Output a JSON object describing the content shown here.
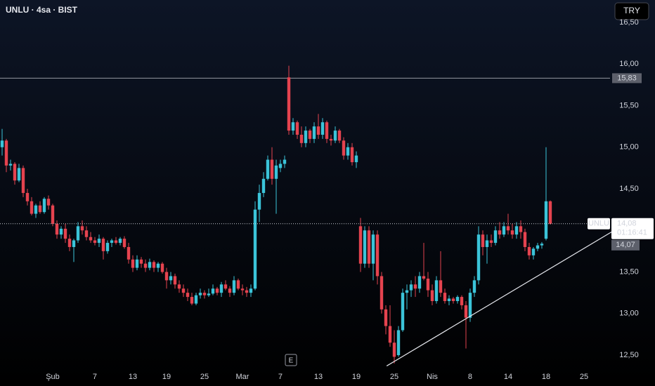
{
  "chart_data": {
    "type": "candlestick",
    "title": "UNLU · 4sa · BIST",
    "currency": "TRY",
    "event_marker": "E",
    "up_color": "#3bc4d9",
    "down_color": "#e5434f",
    "ylim": [
      12.34,
      16.77
    ],
    "yticks": [
      {
        "value": 12.5,
        "label": "12,50"
      },
      {
        "value": 13,
        "label": "13,00"
      },
      {
        "value": 13.5,
        "label": "13,50"
      },
      {
        "value": 14,
        "label": "14,00"
      },
      {
        "value": 14.5,
        "label": "14,50"
      },
      {
        "value": 15,
        "label": "15,00"
      },
      {
        "value": 15.5,
        "label": "15,50"
      },
      {
        "value": 16,
        "label": "16,00"
      },
      {
        "value": 16.5,
        "label": "16,50"
      }
    ],
    "xlim": [
      -0.5,
      144.17
    ],
    "xticks": [
      {
        "value": 12,
        "label": "Şub"
      },
      {
        "value": 22,
        "label": "7"
      },
      {
        "value": 31,
        "label": "13"
      },
      {
        "value": 39,
        "label": "19"
      },
      {
        "value": 48,
        "label": "25"
      },
      {
        "value": 57,
        "label": "Mar"
      },
      {
        "value": 66,
        "label": "7"
      },
      {
        "value": 75,
        "label": "13"
      },
      {
        "value": 84,
        "label": "19"
      },
      {
        "value": 93,
        "label": "25"
      },
      {
        "value": 102,
        "label": "Nis"
      },
      {
        "value": 111,
        "label": "8"
      },
      {
        "value": 120,
        "label": "14"
      },
      {
        "value": 129,
        "label": "18"
      },
      {
        "value": 138,
        "label": "25"
      }
    ],
    "hline": {
      "value": 15.83,
      "label": "15,83"
    },
    "last_price": {
      "value": 14.08,
      "label": "14,08",
      "countdown": "01:16:41",
      "symbol": "UNLU"
    },
    "bid": {
      "value": 14.07,
      "label": "14,07"
    },
    "trendline": {
      "x": [
        91.2,
        144.5
      ],
      "y": [
        12.37,
        13.98
      ]
    },
    "candles": [
      [
        15.0,
        15.22,
        14.9,
        15.08
      ],
      [
        15.08,
        15.1,
        14.7,
        14.78
      ],
      [
        14.78,
        14.85,
        14.72,
        14.8
      ],
      [
        14.8,
        14.82,
        14.55,
        14.6
      ],
      [
        14.6,
        14.8,
        14.58,
        14.75
      ],
      [
        14.75,
        14.78,
        14.4,
        14.45
      ],
      [
        14.45,
        14.5,
        14.3,
        14.35
      ],
      [
        14.35,
        14.4,
        14.18,
        14.2
      ],
      [
        14.2,
        14.32,
        14.15,
        14.3
      ],
      [
        14.3,
        14.35,
        14.2,
        14.22
      ],
      [
        14.22,
        14.4,
        14.2,
        14.38
      ],
      [
        14.38,
        14.42,
        14.25,
        14.3
      ],
      [
        14.3,
        14.32,
        14.05,
        14.08
      ],
      [
        14.08,
        14.12,
        13.9,
        13.95
      ],
      [
        13.95,
        14.05,
        13.9,
        14.02
      ],
      [
        14.02,
        14.08,
        13.85,
        13.9
      ],
      [
        13.9,
        13.95,
        13.75,
        13.8
      ],
      [
        13.8,
        13.9,
        13.62,
        13.88
      ],
      [
        13.88,
        14.1,
        13.85,
        14.05
      ],
      [
        14.05,
        14.12,
        13.95,
        14.0
      ],
      [
        14.0,
        14.05,
        13.88,
        13.92
      ],
      [
        13.92,
        13.98,
        13.85,
        13.88
      ],
      [
        13.88,
        13.92,
        13.82,
        13.85
      ],
      [
        13.85,
        13.95,
        13.8,
        13.9
      ],
      [
        13.9,
        13.92,
        13.65,
        13.75
      ],
      [
        13.75,
        13.88,
        13.72,
        13.85
      ],
      [
        13.85,
        13.9,
        13.8,
        13.88
      ],
      [
        13.88,
        13.92,
        13.83,
        13.85
      ],
      [
        13.85,
        13.92,
        13.82,
        13.9
      ],
      [
        13.9,
        13.93,
        13.78,
        13.8
      ],
      [
        13.8,
        13.85,
        13.6,
        13.65
      ],
      [
        13.65,
        13.7,
        13.5,
        13.55
      ],
      [
        13.55,
        13.7,
        13.52,
        13.65
      ],
      [
        13.65,
        13.68,
        13.55,
        13.6
      ],
      [
        13.6,
        13.65,
        13.5,
        13.55
      ],
      [
        13.55,
        13.66,
        13.52,
        13.62
      ],
      [
        13.62,
        13.64,
        13.5,
        13.55
      ],
      [
        13.55,
        13.62,
        13.5,
        13.6
      ],
      [
        13.6,
        13.62,
        13.48,
        13.5
      ],
      [
        13.5,
        13.55,
        13.3,
        13.4
      ],
      [
        13.4,
        13.5,
        13.35,
        13.45
      ],
      [
        13.45,
        13.48,
        13.3,
        13.35
      ],
      [
        13.35,
        13.4,
        13.25,
        13.3
      ],
      [
        13.3,
        13.35,
        13.2,
        13.25
      ],
      [
        13.25,
        13.3,
        13.15,
        13.2
      ],
      [
        13.2,
        13.25,
        13.1,
        13.12
      ],
      [
        13.12,
        13.25,
        13.1,
        13.22
      ],
      [
        13.22,
        13.3,
        13.18,
        13.25
      ],
      [
        13.25,
        13.28,
        13.18,
        13.22
      ],
      [
        13.22,
        13.3,
        13.2,
        13.24
      ],
      [
        13.24,
        13.35,
        13.22,
        13.3
      ],
      [
        13.3,
        13.32,
        13.22,
        13.25
      ],
      [
        13.25,
        13.38,
        13.2,
        13.35
      ],
      [
        13.35,
        13.4,
        13.28,
        13.3
      ],
      [
        13.3,
        13.33,
        13.2,
        13.25
      ],
      [
        13.25,
        13.45,
        13.22,
        13.4
      ],
      [
        13.4,
        13.42,
        13.28,
        13.3
      ],
      [
        13.3,
        13.35,
        13.22,
        13.28
      ],
      [
        13.28,
        13.32,
        13.2,
        13.25
      ],
      [
        13.25,
        13.35,
        13.2,
        13.3
      ],
      [
        13.3,
        14.35,
        13.28,
        14.25
      ],
      [
        14.25,
        14.55,
        14.1,
        14.45
      ],
      [
        14.45,
        14.7,
        14.4,
        14.62
      ],
      [
        14.62,
        14.9,
        14.6,
        14.85
      ],
      [
        14.85,
        15.0,
        14.55,
        14.62
      ],
      [
        14.62,
        14.85,
        14.2,
        14.78
      ],
      [
        14.75,
        14.85,
        14.7,
        14.8
      ],
      [
        14.8,
        14.9,
        14.75,
        14.85
      ],
      [
        15.84,
        15.98,
        15.15,
        15.2
      ],
      [
        15.2,
        15.35,
        15.15,
        15.3
      ],
      [
        15.3,
        15.32,
        15.1,
        15.15
      ],
      [
        15.15,
        15.25,
        15.0,
        15.05
      ],
      [
        15.05,
        15.25,
        15.0,
        15.2
      ],
      [
        15.2,
        15.22,
        15.05,
        15.1
      ],
      [
        15.1,
        15.3,
        15.05,
        15.25
      ],
      [
        15.25,
        15.4,
        15.1,
        15.15
      ],
      [
        15.15,
        15.35,
        15.1,
        15.3
      ],
      [
        15.3,
        15.32,
        15.05,
        15.1
      ],
      [
        15.1,
        15.15,
        15.02,
        15.08
      ],
      [
        15.08,
        15.25,
        15.05,
        15.2
      ],
      [
        15.2,
        15.22,
        15.05,
        15.08
      ],
      [
        15.08,
        15.12,
        14.85,
        14.9
      ],
      [
        14.9,
        15.05,
        14.85,
        15.0
      ],
      [
        15.0,
        15.05,
        14.78,
        14.82
      ],
      [
        14.82,
        14.95,
        14.75,
        14.9
      ],
      [
        14.05,
        14.15,
        13.5,
        13.6
      ],
      [
        13.6,
        14.05,
        13.55,
        14.0
      ],
      [
        14.0,
        14.05,
        13.55,
        13.6
      ],
      [
        13.6,
        14.0,
        13.4,
        13.95
      ],
      [
        13.95,
        14.0,
        13.35,
        13.45
      ],
      [
        13.45,
        13.5,
        13.0,
        13.05
      ],
      [
        13.05,
        13.1,
        12.75,
        12.85
      ],
      [
        12.85,
        13.1,
        12.6,
        12.65
      ],
      [
        12.65,
        12.8,
        12.4,
        12.48
      ],
      [
        12.5,
        12.85,
        12.48,
        12.8
      ],
      [
        12.8,
        13.3,
        12.78,
        13.25
      ],
      [
        13.25,
        13.35,
        13.05,
        13.28
      ],
      [
        13.28,
        13.4,
        13.2,
        13.35
      ],
      [
        13.35,
        13.45,
        13.2,
        13.3
      ],
      [
        13.3,
        13.5,
        13.25,
        13.45
      ],
      [
        13.45,
        13.85,
        13.4,
        13.42
      ],
      [
        13.42,
        13.5,
        13.2,
        13.28
      ],
      [
        13.28,
        13.35,
        13.1,
        13.15
      ],
      [
        13.15,
        13.45,
        13.12,
        13.4
      ],
      [
        13.4,
        13.75,
        13.2,
        13.25
      ],
      [
        13.25,
        13.3,
        13.12,
        13.15
      ],
      [
        13.15,
        13.22,
        13.1,
        13.18
      ],
      [
        13.18,
        13.2,
        13.12,
        13.15
      ],
      [
        13.15,
        13.22,
        13.12,
        13.2
      ],
      [
        13.2,
        13.22,
        13.05,
        13.1
      ],
      [
        13.1,
        13.15,
        12.58,
        12.95
      ],
      [
        12.95,
        13.3,
        12.9,
        13.25
      ],
      [
        13.25,
        13.45,
        13.2,
        13.4
      ],
      [
        13.4,
        14.05,
        13.35,
        13.95
      ],
      [
        13.95,
        14.0,
        13.7,
        13.8
      ],
      [
        13.8,
        13.95,
        13.6,
        13.88
      ],
      [
        13.88,
        13.95,
        13.8,
        13.85
      ],
      [
        13.85,
        14.05,
        13.82,
        14.0
      ],
      [
        14.0,
        14.1,
        13.9,
        13.95
      ],
      [
        13.95,
        14.1,
        13.92,
        14.05
      ],
      [
        14.05,
        14.2,
        13.95,
        14.0
      ],
      [
        14.0,
        14.08,
        13.9,
        13.95
      ],
      [
        13.95,
        14.1,
        13.9,
        14.05
      ],
      [
        14.05,
        14.12,
        13.9,
        13.98
      ],
      [
        13.98,
        14.02,
        13.75,
        13.8
      ],
      [
        13.8,
        13.85,
        13.65,
        13.7
      ],
      [
        13.7,
        13.8,
        13.65,
        13.78
      ],
      [
        13.78,
        13.85,
        13.75,
        13.82
      ],
      [
        13.82,
        13.86,
        13.78,
        13.84
      ],
      [
        13.9,
        15.0,
        13.88,
        14.35
      ],
      [
        14.35,
        14.36,
        14.07,
        14.08
      ]
    ]
  }
}
